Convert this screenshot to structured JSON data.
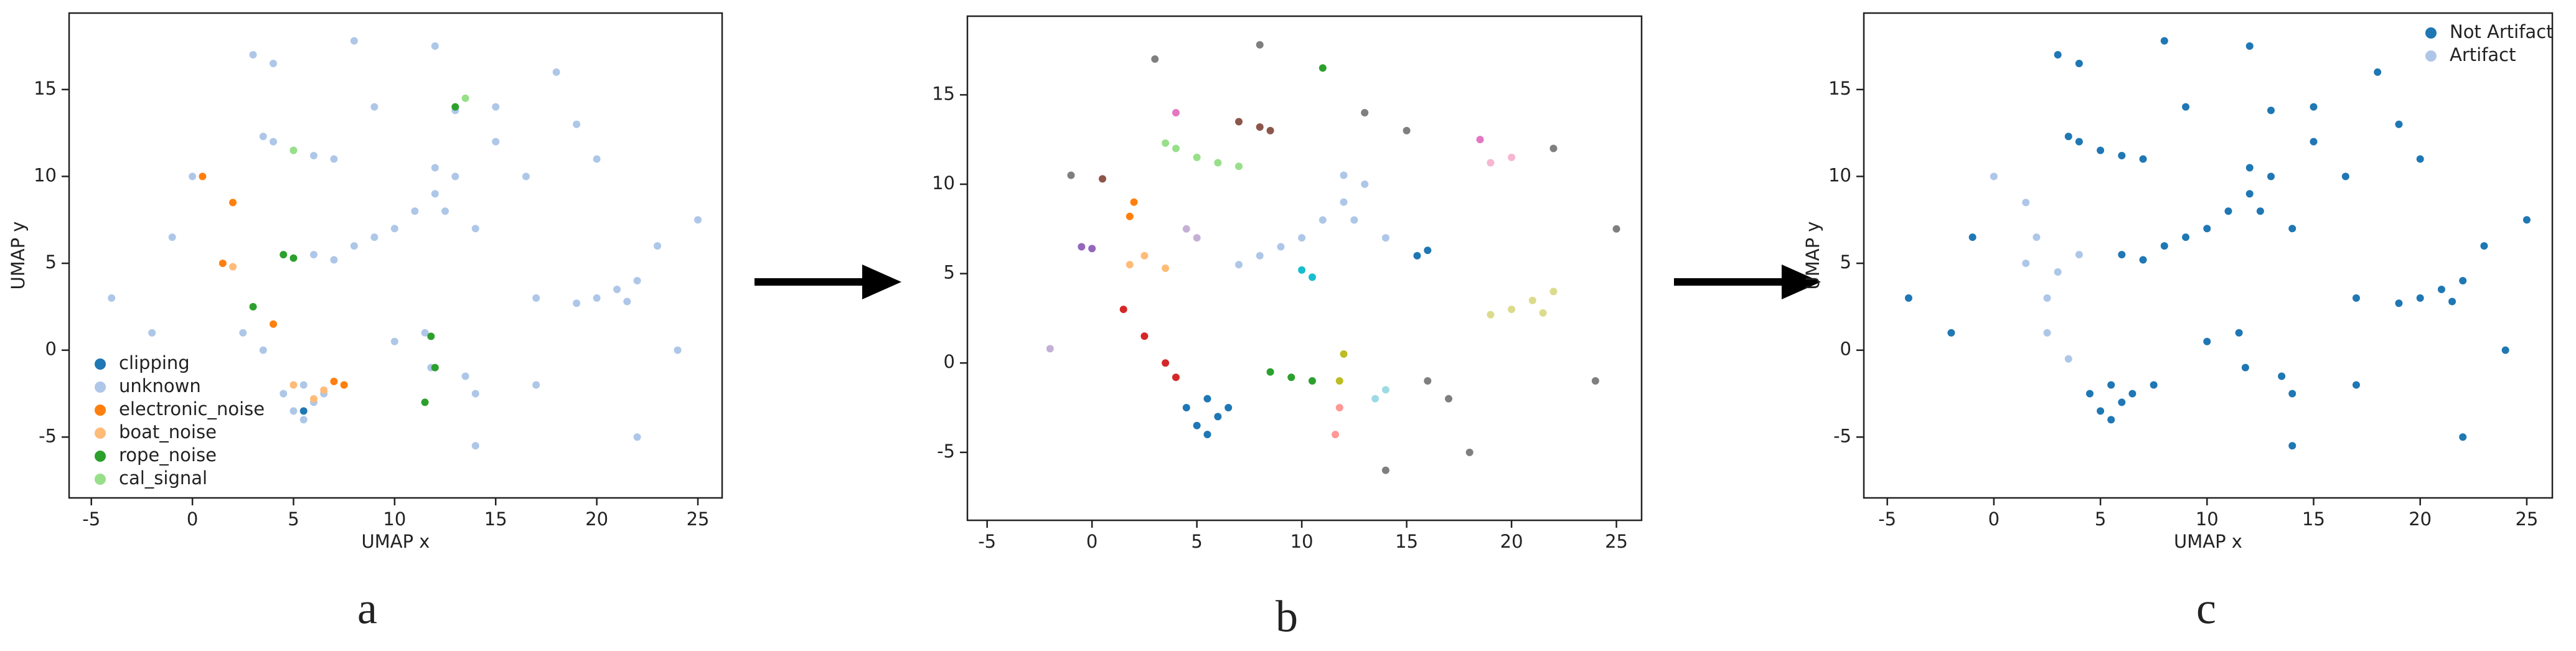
{
  "chart_data": [
    {
      "type": "scatter",
      "panel_label": "a",
      "x_label": "UMAP x",
      "y_label": "UMAP y",
      "xlim": [
        -6.1,
        26.2
      ],
      "ylim": [
        -8.5,
        19.4
      ],
      "xticks": [
        -5,
        0,
        5,
        10,
        15,
        20,
        25
      ],
      "yticks": [
        -5,
        0,
        5,
        10,
        15
      ],
      "legend": "lower left",
      "series": [
        {
          "name": "clipping",
          "color": "#1f77b4",
          "x": [
            5.5
          ],
          "y": [
            -3.5
          ]
        },
        {
          "name": "unknown",
          "color": "#aec7e8",
          "x": [
            4.5,
            5,
            5.5,
            6,
            6.5,
            5.5,
            12,
            12.5,
            11,
            10,
            9,
            13,
            12,
            8,
            14,
            20,
            21,
            22,
            19,
            21.5,
            4,
            5,
            6,
            7,
            3.5,
            6,
            7,
            11.5,
            11.8,
            13.5,
            14,
            2.5,
            3.5,
            3,
            4,
            8,
            12,
            15,
            18,
            19,
            20,
            15,
            25,
            23,
            24,
            10,
            17,
            22,
            -2,
            -1,
            0,
            -4,
            17,
            14,
            9,
            13,
            16.5
          ],
          "y": [
            -2.5,
            -3.5,
            -4,
            -3,
            -2.5,
            -2,
            9,
            8,
            8,
            7,
            6.5,
            10,
            10.5,
            6,
            7,
            3,
            3.5,
            4,
            2.7,
            2.8,
            12,
            11.5,
            11.2,
            11,
            12.3,
            5.5,
            5.2,
            1,
            -1,
            -1.5,
            -2.5,
            1,
            0,
            17,
            16.5,
            17.8,
            17.5,
            14,
            16,
            13,
            11,
            12,
            7.5,
            6,
            0,
            0.5,
            -2,
            -5,
            1,
            6.5,
            10,
            3,
            3,
            -5.5,
            14,
            13.8,
            10
          ]
        },
        {
          "name": "electronic_noise",
          "color": "#ff7f0e",
          "x": [
            7.5,
            2,
            1.5,
            0.5,
            4,
            7
          ],
          "y": [
            -2,
            8.5,
            5,
            10,
            1.5,
            -1.8
          ]
        },
        {
          "name": "boat_noise",
          "color": "#ffbb78",
          "x": [
            6.5,
            5,
            2,
            6
          ],
          "y": [
            -2.3,
            -2,
            4.8,
            -2.8
          ]
        },
        {
          "name": "rope_noise",
          "color": "#2ca02c",
          "x": [
            12,
            11.8,
            4.5,
            5,
            13,
            3,
            11.5
          ],
          "y": [
            -1,
            0.8,
            5.5,
            5.3,
            14,
            2.5,
            -3
          ]
        },
        {
          "name": "cal_signal",
          "color": "#98df8a",
          "x": [
            5,
            13.5
          ],
          "y": [
            11.5,
            14.5
          ]
        }
      ]
    },
    {
      "type": "scatter",
      "panel_label": "b",
      "xlim": [
        -5.94,
        26.2
      ],
      "ylim": [
        -8.8,
        19.4
      ],
      "xticks": [
        -5,
        0,
        5,
        10,
        15,
        20,
        25
      ],
      "yticks": [
        -5,
        0,
        5,
        10,
        15
      ],
      "series": [
        {
          "color": "#1f77b4",
          "x": [
            4.5,
            5,
            5.5,
            6,
            6.5,
            5.5,
            15.5,
            16
          ],
          "y": [
            -2.5,
            -3.5,
            -4,
            -3,
            -2.5,
            -2,
            6,
            6.3
          ]
        },
        {
          "color": "#aec7e8",
          "x": [
            12,
            12.5,
            11,
            10,
            9,
            13,
            12,
            8,
            14,
            7
          ],
          "y": [
            9,
            8,
            8,
            7,
            6.5,
            10,
            10.5,
            6,
            7,
            5.5
          ]
        },
        {
          "color": "#98df8a",
          "x": [
            4,
            5,
            6,
            7,
            3.5
          ],
          "y": [
            12,
            11.5,
            11.2,
            11,
            12.3
          ]
        },
        {
          "color": "#dbdb8d",
          "x": [
            20,
            21,
            22,
            19,
            21.5
          ],
          "y": [
            3,
            3.5,
            4,
            2.7,
            2.8
          ]
        },
        {
          "color": "#17becf",
          "x": [
            10,
            10.5
          ],
          "y": [
            5.2,
            4.8
          ]
        },
        {
          "color": "#ff7f0e",
          "x": [
            2,
            1.8
          ],
          "y": [
            9,
            8.2
          ]
        },
        {
          "color": "#ffbb78",
          "x": [
            1.8,
            2.5,
            3.5
          ],
          "y": [
            5.5,
            6,
            5.3
          ]
        },
        {
          "color": "#d62728",
          "x": [
            1.5,
            2.5,
            3.5,
            4
          ],
          "y": [
            3,
            1.5,
            0,
            -0.8
          ]
        },
        {
          "color": "#2ca02c",
          "x": [
            8.5,
            9.5,
            10.5,
            11
          ],
          "y": [
            -0.5,
            -0.8,
            -1,
            16.5
          ]
        },
        {
          "color": "#bcbd22",
          "x": [
            12,
            11.8
          ],
          "y": [
            0.5,
            -1
          ]
        },
        {
          "color": "#ff9896",
          "x": [
            11.8,
            11.6
          ],
          "y": [
            -2.5,
            -4
          ]
        },
        {
          "color": "#9467bd",
          "x": [
            -0.5,
            0
          ],
          "y": [
            6.5,
            6.4
          ]
        },
        {
          "color": "#c5b0d5",
          "x": [
            5,
            4.5,
            -2
          ],
          "y": [
            7,
            7.5,
            0.8
          ]
        },
        {
          "color": "#7f7f7f",
          "x": [
            3,
            8,
            15,
            17,
            25,
            24,
            -1,
            14,
            13,
            18,
            22,
            16
          ],
          "y": [
            17,
            17.8,
            13,
            -2,
            7.5,
            -1,
            10.5,
            -6,
            14,
            -5,
            12,
            -1
          ]
        },
        {
          "color": "#8c564b",
          "x": [
            7,
            8,
            8.5,
            0.5
          ],
          "y": [
            13.5,
            13.2,
            13,
            10.3
          ]
        },
        {
          "color": "#e377c2",
          "x": [
            18.5,
            4
          ],
          "y": [
            12.5,
            14
          ]
        },
        {
          "color": "#f7b6d2",
          "x": [
            20,
            19
          ],
          "y": [
            11.5,
            11.2
          ]
        },
        {
          "color": "#9edae5",
          "x": [
            14,
            13.5
          ],
          "y": [
            -1.5,
            -2
          ]
        }
      ]
    },
    {
      "type": "scatter",
      "panel_label": "c",
      "x_label": "UMAP x",
      "y_label": "UMAP y",
      "xlim": [
        -6.1,
        26.2
      ],
      "ylim": [
        -8.5,
        19.4
      ],
      "xticks": [
        -5,
        0,
        5,
        10,
        15,
        20,
        25
      ],
      "yticks": [
        -5,
        0,
        5,
        10,
        15
      ],
      "legend": "upper right",
      "series": [
        {
          "name": "Not Artifact",
          "color": "#1f77b4",
          "x": [
            4.5,
            5,
            5.5,
            6,
            6.5,
            5.5,
            12,
            12.5,
            11,
            10,
            9,
            13,
            12,
            8,
            14,
            20,
            21,
            22,
            19,
            21.5,
            4,
            5,
            6,
            7,
            3.5,
            6,
            7,
            11.5,
            11.8,
            13.5,
            14,
            3,
            4,
            8,
            12,
            15,
            18,
            19,
            20,
            15,
            25,
            23,
            24,
            10,
            17,
            22,
            -2,
            -1,
            -4,
            17,
            14,
            9,
            13,
            16.5,
            7.5
          ],
          "y": [
            -2.5,
            -3.5,
            -4,
            -3,
            -2.5,
            -2,
            9,
            8,
            8,
            7,
            6.5,
            10,
            10.5,
            6,
            7,
            3,
            3.5,
            4,
            2.7,
            2.8,
            12,
            11.5,
            11.2,
            11,
            12.3,
            5.5,
            5.2,
            1,
            -1,
            -1.5,
            -2.5,
            17,
            16.5,
            17.8,
            17.5,
            14,
            16,
            13,
            11,
            12,
            7.5,
            6,
            0,
            0.5,
            -2,
            -5,
            1,
            6.5,
            3,
            3,
            -5.5,
            14,
            13.8,
            10,
            -2
          ]
        },
        {
          "name": "Artifact",
          "color": "#aec7e8",
          "x": [
            1.5,
            2,
            1.5,
            3,
            2.5,
            0,
            3.5,
            2.5,
            4
          ],
          "y": [
            8.5,
            6.5,
            5,
            4.5,
            3,
            10,
            -0.5,
            1,
            5.5
          ]
        }
      ]
    }
  ]
}
